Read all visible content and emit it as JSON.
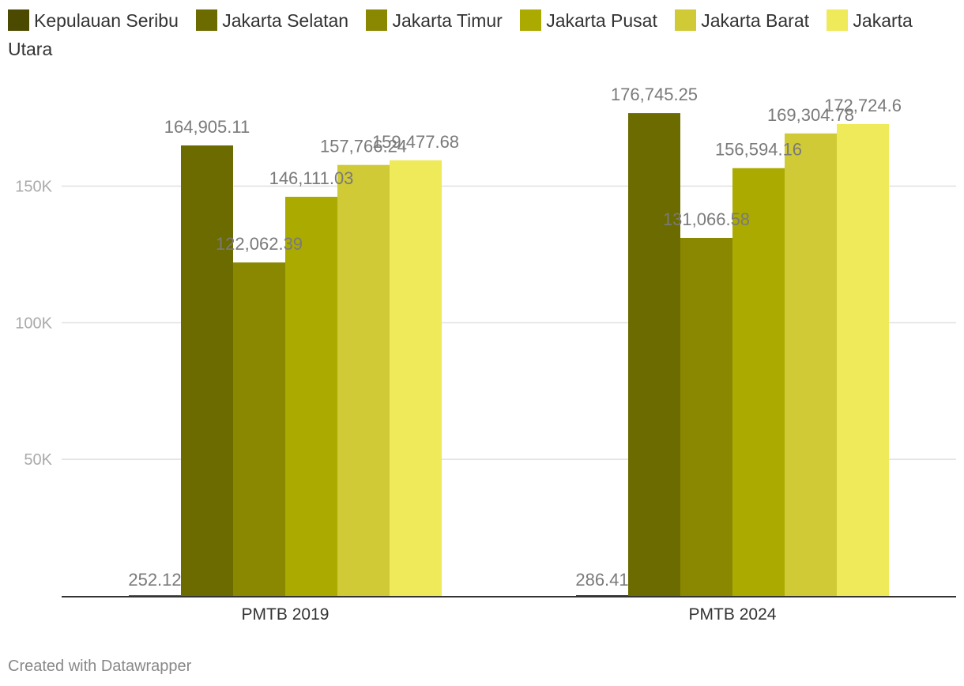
{
  "chart_data": {
    "type": "bar",
    "categories": [
      "PMTB 2019",
      "PMTB 2024"
    ],
    "series": [
      {
        "name": "Kepulauan Seribu",
        "color": "#4c4a00",
        "values": [
          252.12,
          286.41
        ],
        "labels": [
          "252.12",
          "286.41"
        ]
      },
      {
        "name": "Jakarta Selatan",
        "color": "#6b6b00",
        "values": [
          164905.11,
          176745.25
        ],
        "labels": [
          "164,905.11",
          "176,745.25"
        ]
      },
      {
        "name": "Jakarta Timur",
        "color": "#8a8800",
        "values": [
          122062.39,
          131066.58
        ],
        "labels": [
          "122,062.39",
          "131,066.58"
        ]
      },
      {
        "name": "Jakarta Pusat",
        "color": "#aaaa00",
        "values": [
          146111.03,
          156594.16
        ],
        "labels": [
          "146,111.03",
          "156,594.16"
        ]
      },
      {
        "name": "Jakarta Barat",
        "color": "#cfca35",
        "values": [
          157766.24,
          169304.78
        ],
        "labels": [
          "157,766.24",
          "169,304.78"
        ]
      },
      {
        "name": "Jakarta Utara",
        "color": "#eeea5a",
        "values": [
          159477.68,
          172724.6
        ],
        "labels": [
          "159,477.68",
          "172,724.6"
        ]
      }
    ],
    "yticks": [
      50000,
      100000,
      150000
    ],
    "ytick_labels": [
      "50K",
      "100K",
      "150K"
    ],
    "ylim": [
      0,
      195000
    ],
    "grid": true,
    "legend_position": "top-left"
  },
  "footer": "Created with Datawrapper"
}
